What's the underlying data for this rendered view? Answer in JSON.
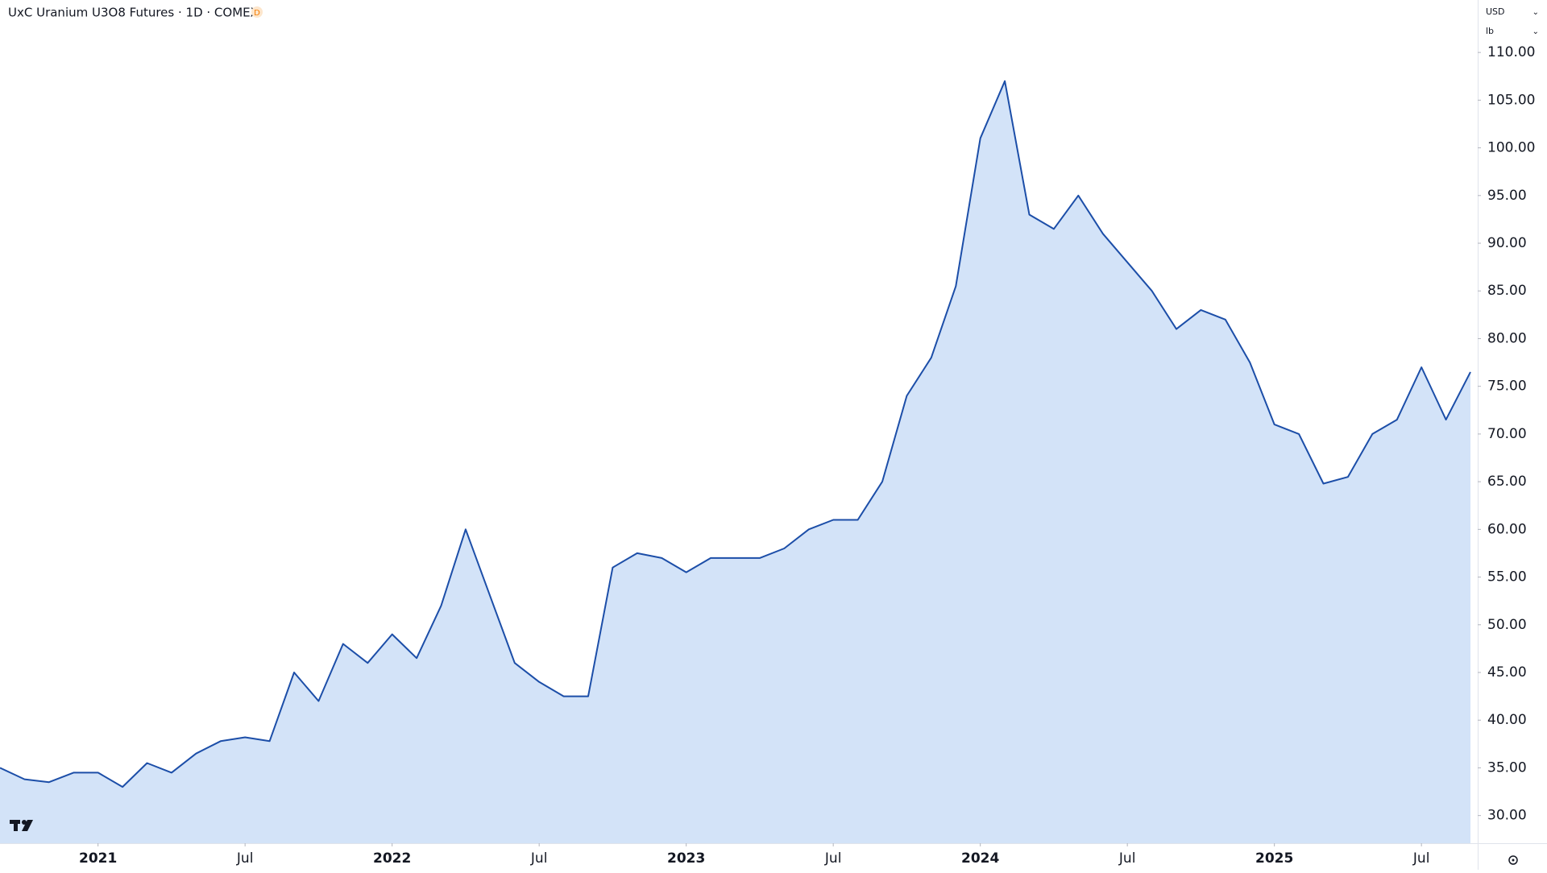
{
  "chart_data": {
    "type": "area",
    "title": "UxC Uranium U3O8 Futures · 1D · COMEX",
    "badge": "D",
    "currency": "USD",
    "unit": "lb",
    "line_color": "#1c4ea8",
    "fill_color": "#d3e3f8",
    "x": [
      "2020-09",
      "2020-10",
      "2020-11",
      "2020-12",
      "2021-01",
      "2021-02",
      "2021-03",
      "2021-04",
      "2021-05",
      "2021-06",
      "2021-07",
      "2021-08",
      "2021-09",
      "2021-10",
      "2021-11",
      "2021-12",
      "2022-01",
      "2022-02",
      "2022-03",
      "2022-04",
      "2022-05",
      "2022-06",
      "2022-07",
      "2022-08",
      "2022-09",
      "2022-10",
      "2022-11",
      "2022-12",
      "2023-01",
      "2023-02",
      "2023-03",
      "2023-04",
      "2023-05",
      "2023-06",
      "2023-07",
      "2023-08",
      "2023-09",
      "2023-10",
      "2023-11",
      "2023-12",
      "2024-01",
      "2024-02",
      "2024-03",
      "2024-04",
      "2024-05",
      "2024-06",
      "2024-07",
      "2024-08",
      "2024-09",
      "2024-10",
      "2024-11",
      "2024-12",
      "2025-01",
      "2025-02",
      "2025-03",
      "2025-04",
      "2025-05",
      "2025-06",
      "2025-07",
      "2025-08",
      "2025-09"
    ],
    "values": [
      35,
      33.8,
      33.5,
      34.5,
      34.5,
      33,
      35.5,
      34.5,
      36.5,
      37.8,
      38.2,
      37.8,
      45,
      42,
      48,
      46,
      49,
      46.5,
      52,
      60,
      53,
      46,
      44,
      42.5,
      42.5,
      56,
      57.5,
      57,
      55.5,
      57,
      57,
      57,
      58,
      60,
      61,
      61,
      65,
      74,
      78,
      85.5,
      101,
      107,
      93,
      91.5,
      95,
      91,
      88,
      85,
      81,
      83,
      82,
      77.5,
      71,
      70,
      64.8,
      65.5,
      70,
      71.5,
      77,
      71.5,
      76.5
    ],
    "ylim": [
      27.1,
      115.5
    ],
    "yticks": [
      {
        "value": 30,
        "label": "30.00"
      },
      {
        "value": 35,
        "label": "35.00"
      },
      {
        "value": 40,
        "label": "40.00"
      },
      {
        "value": 45,
        "label": "45.00"
      },
      {
        "value": 50,
        "label": "50.00"
      },
      {
        "value": 55,
        "label": "55.00"
      },
      {
        "value": 60,
        "label": "60.00"
      },
      {
        "value": 65,
        "label": "65.00"
      },
      {
        "value": 70,
        "label": "70.00"
      },
      {
        "value": 75,
        "label": "75.00"
      },
      {
        "value": 80,
        "label": "80.00"
      },
      {
        "value": 85,
        "label": "85.00"
      },
      {
        "value": 90,
        "label": "90.00"
      },
      {
        "value": 95,
        "label": "95.00"
      },
      {
        "value": 100,
        "label": "100.00"
      },
      {
        "value": 105,
        "label": "105.00"
      },
      {
        "value": 110,
        "label": "110.00"
      }
    ],
    "xticks": [
      {
        "value": "2021-01",
        "label": "2021"
      },
      {
        "value": "2021-07",
        "label": "Jul"
      },
      {
        "value": "2022-01",
        "label": "2022"
      },
      {
        "value": "2022-07",
        "label": "Jul"
      },
      {
        "value": "2023-01",
        "label": "2023"
      },
      {
        "value": "2023-07",
        "label": "Jul"
      },
      {
        "value": "2024-01",
        "label": "2024"
      },
      {
        "value": "2024-07",
        "label": "Jul"
      },
      {
        "value": "2025-01",
        "label": "2025"
      },
      {
        "value": "2025-07",
        "label": "Jul"
      }
    ]
  }
}
